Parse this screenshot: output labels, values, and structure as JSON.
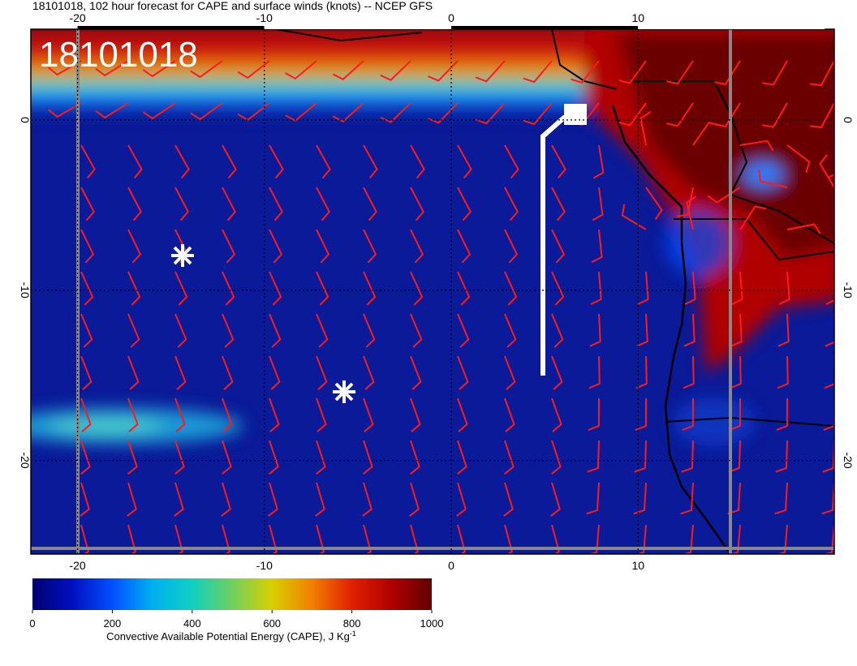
{
  "title": "18101018, 102 hour forecast for CAPE and surface winds (knots) -- NCEP GFS",
  "stamp": "18101018",
  "map": {
    "xlim": [
      -22.5,
      20.5
    ],
    "ylim": [
      -25.5,
      5.33
    ],
    "xticks": [
      -20,
      -10,
      0,
      10
    ],
    "yticks": [
      0,
      -10,
      -20
    ]
  },
  "colorbar": {
    "lim": [
      0,
      1000
    ],
    "ticks": [
      0,
      200,
      400,
      600,
      800,
      1000
    ],
    "label": "Convective Available Potential Energy (CAPE), J Kg",
    "label_sup": "-1"
  }
}
